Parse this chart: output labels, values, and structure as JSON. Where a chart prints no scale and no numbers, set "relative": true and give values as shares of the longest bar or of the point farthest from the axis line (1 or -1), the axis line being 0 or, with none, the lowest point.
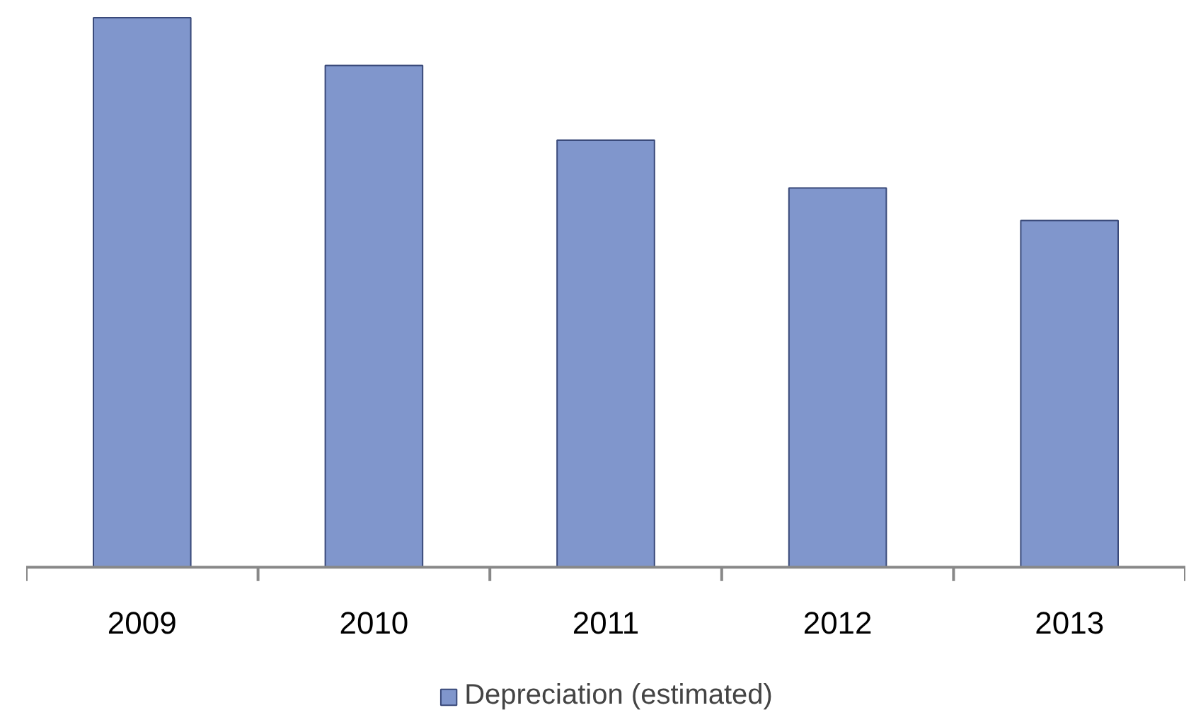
{
  "chart_data": {
    "type": "bar",
    "relative": true,
    "categories": [
      "2009",
      "2010",
      "2011",
      "2012",
      "2013"
    ],
    "series": [
      {
        "name": "Depreciation (estimated)",
        "color": "#8096cc",
        "values": [
          1,
          0.913,
          0.777,
          0.69,
          0.631
        ]
      }
    ],
    "legend": "bottom"
  }
}
